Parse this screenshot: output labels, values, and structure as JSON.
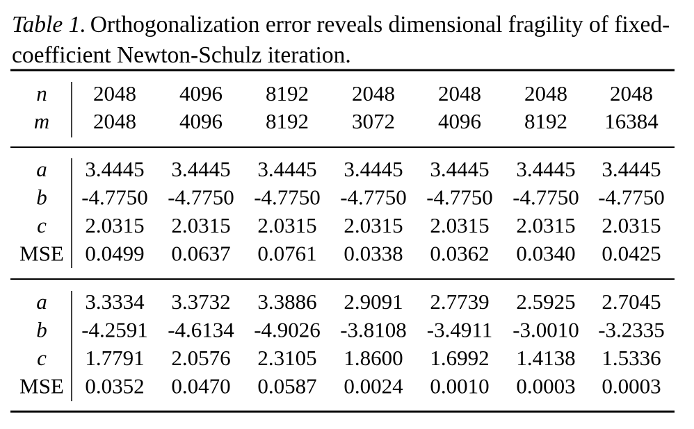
{
  "caption": {
    "label": "Table 1.",
    "text": "Orthogonalization error reveals dimensional fragility of fixed-coefficient Newton-Schulz iteration."
  },
  "table": {
    "header_rows": [
      {
        "label": "n",
        "cells": [
          "2048",
          "4096",
          "8192",
          "2048",
          "2048",
          "2048",
          "2048"
        ]
      },
      {
        "label": "m",
        "cells": [
          "2048",
          "4096",
          "8192",
          "3072",
          "4096",
          "8192",
          "16384"
        ]
      }
    ],
    "blocks": [
      [
        {
          "label": "a",
          "cells": [
            "3.4445",
            "3.4445",
            "3.4445",
            "3.4445",
            "3.4445",
            "3.4445",
            "3.4445"
          ]
        },
        {
          "label": "b",
          "cells": [
            "-4.7750",
            "-4.7750",
            "-4.7750",
            "-4.7750",
            "-4.7750",
            "-4.7750",
            "-4.7750"
          ]
        },
        {
          "label": "c",
          "cells": [
            "2.0315",
            "2.0315",
            "2.0315",
            "2.0315",
            "2.0315",
            "2.0315",
            "2.0315"
          ]
        },
        {
          "label": "MSE",
          "cells": [
            "0.0499",
            "0.0637",
            "0.0761",
            "0.0338",
            "0.0362",
            "0.0340",
            "0.0425"
          ]
        }
      ],
      [
        {
          "label": "a",
          "cells": [
            "3.3334",
            "3.3732",
            "3.3886",
            "2.9091",
            "2.7739",
            "2.5925",
            "2.7045"
          ]
        },
        {
          "label": "b",
          "cells": [
            "-4.2591",
            "-4.6134",
            "-4.9026",
            "-3.8108",
            "-3.4911",
            "-3.0010",
            "-3.2335"
          ]
        },
        {
          "label": "c",
          "cells": [
            "1.7791",
            "2.0576",
            "2.3105",
            "1.8600",
            "1.6992",
            "1.4138",
            "1.5336"
          ]
        },
        {
          "label": "MSE",
          "cells": [
            "0.0352",
            "0.0470",
            "0.0587",
            "0.0024",
            "0.0010",
            "0.0003",
            "0.0003"
          ]
        }
      ]
    ]
  }
}
